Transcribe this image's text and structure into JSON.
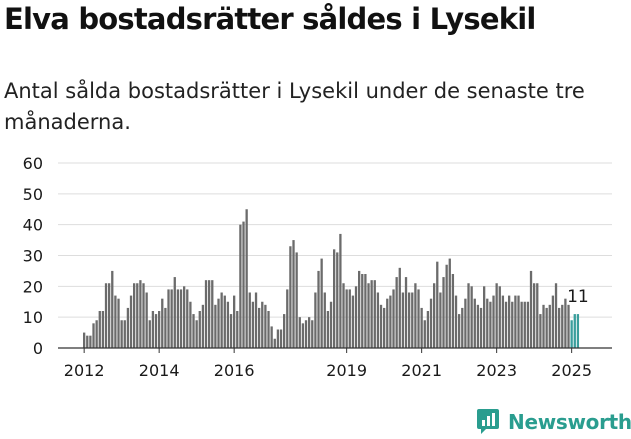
{
  "title": "Elva bostadsrätter såldes i Lysekil",
  "subtitle": "Antal sålda bostadsrätter i Lysekil under de senaste tre månaderna.",
  "brand": {
    "name": "Newsworthy",
    "icon": "newsworthy-logo-icon"
  },
  "colors": {
    "bar": "#6b6b6b",
    "highlight": "#3a9e9c",
    "grid": "#dddddd",
    "text": "#1a1a1a",
    "brand": "#2a9d8f"
  },
  "chart_data": {
    "type": "bar",
    "ylim": [
      0,
      60
    ],
    "yticks": [
      0,
      10,
      20,
      30,
      40,
      50,
      60
    ],
    "xticks": [
      {
        "label": "2012",
        "index": 0
      },
      {
        "label": "2014",
        "index": 24
      },
      {
        "label": "2016",
        "index": 48
      },
      {
        "label": "2019",
        "index": 84
      },
      {
        "label": "2021",
        "index": 108
      },
      {
        "label": "2023",
        "index": 132
      },
      {
        "label": "2025",
        "index": 156
      }
    ],
    "grid": true,
    "values": [
      5,
      4,
      4,
      8,
      9,
      12,
      12,
      21,
      21,
      25,
      17,
      16,
      9,
      9,
      13,
      17,
      21,
      21,
      22,
      21,
      18,
      9,
      12,
      11,
      12,
      16,
      13,
      19,
      19,
      23,
      19,
      19,
      20,
      19,
      15,
      11,
      9,
      12,
      14,
      22,
      22,
      22,
      14,
      16,
      18,
      17,
      15,
      11,
      17,
      12,
      40,
      41,
      45,
      18,
      15,
      18,
      13,
      15,
      14,
      12,
      7,
      3,
      6,
      6,
      11,
      19,
      33,
      35,
      31,
      10,
      8,
      9,
      10,
      9,
      18,
      25,
      29,
      18,
      12,
      15,
      32,
      31,
      37,
      21,
      19,
      19,
      17,
      20,
      25,
      24,
      24,
      21,
      22,
      22,
      18,
      14,
      13,
      16,
      17,
      19,
      23,
      26,
      18,
      23,
      18,
      18,
      21,
      19,
      13,
      9,
      12,
      16,
      21,
      28,
      18,
      23,
      27,
      29,
      24,
      17,
      11,
      13,
      16,
      21,
      20,
      16,
      14,
      13,
      20,
      16,
      15,
      17,
      21,
      20,
      17,
      15,
      17,
      15,
      17,
      17,
      15,
      15,
      15,
      25,
      21,
      21,
      11,
      14,
      13,
      14,
      17,
      21,
      13,
      14,
      16,
      14,
      9,
      11,
      11
    ],
    "highlight_from": 156,
    "annotation": {
      "text": "11",
      "index": 158
    }
  }
}
